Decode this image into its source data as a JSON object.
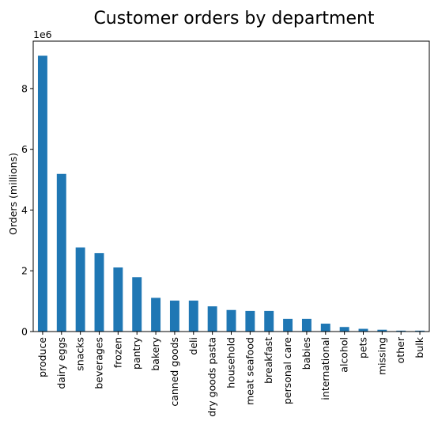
{
  "chart_data": {
    "type": "bar",
    "title": "Customer orders by department",
    "xlabel": "",
    "ylabel": "Orders (millions)",
    "y_multiplier_label": "1e6",
    "y_multiplier": 1000000,
    "ylim": [
      0,
      9560000
    ],
    "yticks": [
      0,
      2000000,
      4000000,
      6000000,
      8000000
    ],
    "ytick_labels": [
      "0",
      "2",
      "4",
      "6",
      "8"
    ],
    "categories": [
      "produce",
      "dairy eggs",
      "snacks",
      "beverages",
      "frozen",
      "pantry",
      "bakery",
      "canned goods",
      "deli",
      "dry goods pasta",
      "household",
      "meat seafood",
      "breakfast",
      "personal care",
      "babies",
      "international",
      "alcohol",
      "pets",
      "missing",
      "other",
      "bulk"
    ],
    "values": [
      9080000,
      5190000,
      2770000,
      2580000,
      2110000,
      1790000,
      1110000,
      1020000,
      1020000,
      830000,
      710000,
      680000,
      680000,
      420000,
      420000,
      260000,
      150000,
      90000,
      60000,
      30000,
      30000
    ],
    "bar_color": "#1f77b4",
    "grid": false,
    "legend": "none"
  }
}
